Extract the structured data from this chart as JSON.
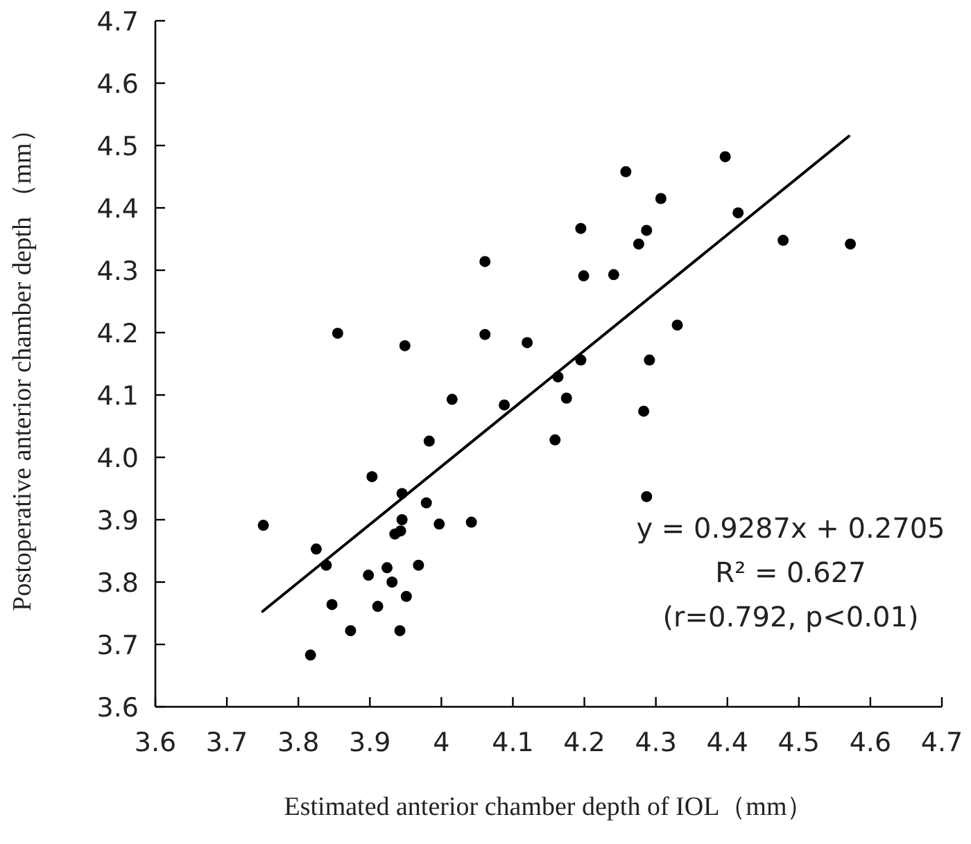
{
  "chart_data": {
    "type": "scatter",
    "xlabel": "Estimated anterior chamber depth of IOL（mm）",
    "ylabel": "Postoperative anterior chamber depth （mm）",
    "annotations": [
      "y = 0.9287x + 0.2705",
      "R² = 0.627",
      "(r=0.792, p<0.01)"
    ],
    "xlim": [
      3.6,
      4.7
    ],
    "xticks": [
      3.6,
      3.7,
      3.8,
      3.9,
      {
        "value": 4.0,
        "label": "4"
      },
      4.1,
      4.2,
      4.3,
      4.4,
      4.5,
      4.6,
      4.7
    ],
    "ylim": [
      3.6,
      4.7
    ],
    "yticks": [
      3.6,
      3.7,
      3.8,
      3.9,
      {
        "value": 4.0,
        "label": "4.0"
      },
      4.1,
      4.2,
      4.3,
      4.4,
      4.5,
      4.6,
      4.7
    ],
    "grid": false,
    "marker": "circle",
    "series": [
      {
        "color": "#000000",
        "x": [
          3.855,
          3.949,
          4.061,
          4.061,
          4.12,
          4.015,
          4.088,
          4.397,
          4.258,
          4.307,
          4.415,
          4.195,
          4.287,
          4.276,
          4.478,
          4.572,
          4.199,
          4.241,
          4.33,
          4.195,
          4.291,
          4.163,
          4.175,
          4.283,
          4.159,
          4.287,
          3.983,
          3.903,
          3.945,
          3.979,
          3.751,
          3.945,
          3.997,
          4.042,
          3.935,
          3.943,
          3.825,
          3.839,
          3.968,
          3.924,
          3.898,
          3.931,
          3.951,
          3.847,
          3.911,
          3.873,
          3.942,
          3.817
        ],
        "values": [
          4.199,
          4.179,
          4.314,
          4.197,
          4.184,
          4.093,
          4.084,
          4.482,
          4.458,
          4.415,
          4.392,
          4.367,
          4.364,
          4.342,
          4.348,
          4.342,
          4.291,
          4.293,
          4.212,
          4.156,
          4.156,
          4.129,
          4.095,
          4.074,
          4.028,
          3.937,
          4.026,
          3.969,
          3.942,
          3.927,
          3.891,
          3.9,
          3.893,
          3.896,
          3.877,
          3.882,
          3.853,
          3.827,
          3.827,
          3.823,
          3.811,
          3.8,
          3.777,
          3.764,
          3.761,
          3.722,
          3.722,
          3.683
        ]
      },
      {
        "type": "line",
        "color": "#000000",
        "marker": "none",
        "line_style": "solid",
        "x": [
          3.75,
          4.57
        ],
        "values": [
          3.753,
          4.515
        ]
      }
    ]
  }
}
